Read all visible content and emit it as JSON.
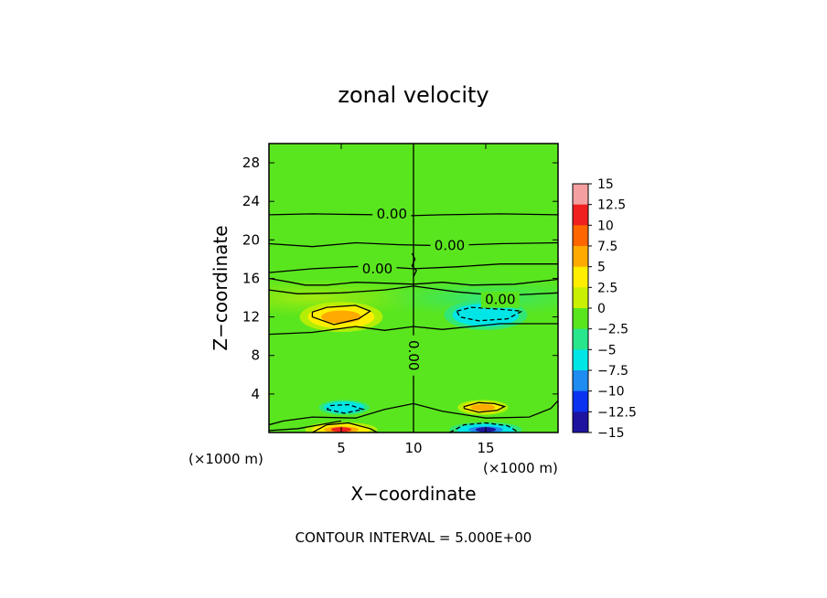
{
  "chart_data": {
    "type": "heatmap",
    "title": "zonal velocity",
    "xlabel": "X−coordinate",
    "ylabel": "Z−coordinate",
    "x_unit_label": "(×1000 m)",
    "z_unit_label": "(×1000 m)",
    "footer": "CONTOUR INTERVAL = 5.000E+00",
    "xlim": [
      0,
      20
    ],
    "ylim": [
      0,
      30
    ],
    "x_ticks": [
      "5",
      "10",
      "15"
    ],
    "x_tick_values": [
      5,
      10,
      15
    ],
    "y_ticks": [
      "4",
      "8",
      "12",
      "16",
      "20",
      "24",
      "28"
    ],
    "y_tick_values": [
      4,
      8,
      12,
      16,
      20,
      24,
      28
    ],
    "contour_interval": 5,
    "contour_labels": [
      {
        "text": "0.00",
        "x": 8.5,
        "z": 22.7
      },
      {
        "text": "0.00",
        "x": 12.5,
        "z": 19.4
      },
      {
        "text": "0.00",
        "x": 7.5,
        "z": 17.0
      },
      {
        "text": "0.00",
        "x": 16.0,
        "z": 13.8
      },
      {
        "text": "0.00",
        "x": 10.0,
        "z": 8.0,
        "rotated": true
      }
    ],
    "colorbar": {
      "labels": [
        "15",
        "12.5",
        "10",
        "7.5",
        "5",
        "2.5",
        "0",
        "−2.5",
        "−5",
        "−7.5",
        "−10",
        "−12.5",
        "−15"
      ],
      "values": [
        15,
        12.5,
        10,
        7.5,
        5,
        2.5,
        0,
        -2.5,
        -5,
        -7.5,
        -10,
        -12.5,
        -15
      ],
      "colors": [
        "#f4a0a0",
        "#ee2020",
        "#ff6600",
        "#ffaa00",
        "#ffee00",
        "#c8f000",
        "#5ae61e",
        "#28e68c",
        "#00e6e6",
        "#1e8cf0",
        "#0a32f0",
        "#1e14a0",
        "#6e1aa0"
      ]
    },
    "background_color": "#5ae61e",
    "features": [
      {
        "name": "positive-cell-upper-left",
        "x": 5.0,
        "z": 12.0,
        "rx": 2.3,
        "rz": 1.2,
        "peak": 7.5
      },
      {
        "name": "negative-cell-upper-right",
        "x": 15.0,
        "z": 12.2,
        "rx": 2.3,
        "rz": 1.2,
        "peak": -5.5
      },
      {
        "name": "negative-cell-lower-left",
        "x": 5.2,
        "z": 2.6,
        "rx": 1.4,
        "rz": 0.6,
        "peak": -5.0
      },
      {
        "name": "positive-cell-lower-right",
        "x": 14.8,
        "z": 2.6,
        "rx": 1.4,
        "rz": 0.6,
        "peak": 7.0
      },
      {
        "name": "positive-core-bottom-left",
        "x": 5.0,
        "z": 0.3,
        "rx": 2.0,
        "rz": 0.6,
        "peak": 13.0
      },
      {
        "name": "negative-core-bottom-right",
        "x": 15.0,
        "z": 0.3,
        "rx": 2.0,
        "rz": 0.6,
        "peak": -12.0
      }
    ]
  }
}
